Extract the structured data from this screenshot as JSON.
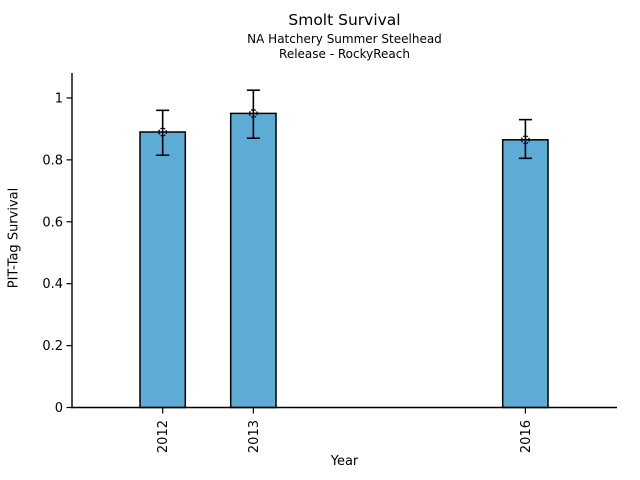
{
  "chart_data": {
    "type": "bar",
    "title": "Smolt Survival",
    "subtitle_line1": "NA Hatchery Summer Steelhead",
    "subtitle_line2": "Release - RockyReach",
    "xlabel": "Year",
    "ylabel": "PIT-Tag Survival",
    "categories": [
      "2012",
      "2013",
      "2016"
    ],
    "x_numeric": [
      2012,
      2013,
      2016
    ],
    "values": [
      0.89,
      0.95,
      0.865
    ],
    "error_low": [
      0.815,
      0.87,
      0.805
    ],
    "error_high": [
      0.96,
      1.025,
      0.93
    ],
    "xlim": [
      2011,
      2017
    ],
    "ylim": [
      0,
      1.08
    ],
    "yticks": [
      0,
      0.2,
      0.4,
      0.6,
      0.8,
      1
    ],
    "ytick_labels": [
      "0",
      "0.2",
      "0.4",
      "0.6",
      "0.8",
      "1"
    ],
    "bar_width_years": 0.5,
    "grid": false,
    "legend": false,
    "marker": "open-circle-dashed",
    "colors": {
      "bar_fill": "#5CACD6",
      "bar_edge": "#000000",
      "errorbar": "#000000",
      "axis": "#000000",
      "text": "#000000",
      "background": "#FFFFFF"
    }
  }
}
